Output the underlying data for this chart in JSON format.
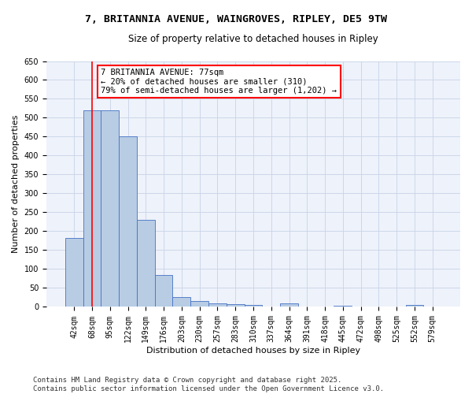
{
  "title_line1": "7, BRITANNIA AVENUE, WAINGROVES, RIPLEY, DE5 9TW",
  "title_line2": "Size of property relative to detached houses in Ripley",
  "xlabel": "Distribution of detached houses by size in Ripley",
  "ylabel": "Number of detached properties",
  "categories": [
    "42sqm",
    "68sqm",
    "95sqm",
    "122sqm",
    "149sqm",
    "176sqm",
    "203sqm",
    "230sqm",
    "257sqm",
    "283sqm",
    "310sqm",
    "337sqm",
    "364sqm",
    "391sqm",
    "418sqm",
    "445sqm",
    "472sqm",
    "498sqm",
    "525sqm",
    "552sqm",
    "579sqm"
  ],
  "values": [
    183,
    520,
    520,
    450,
    230,
    85,
    27,
    15,
    10,
    7,
    5,
    0,
    10,
    0,
    0,
    3,
    0,
    0,
    0,
    5,
    0
  ],
  "bar_color": "#b8cce4",
  "bar_edge_color": "#4472c4",
  "grid_color": "#c8d4e8",
  "bg_color": "#eef2fa",
  "vline_x_index": 1,
  "vline_color": "red",
  "annotation_text": "7 BRITANNIA AVENUE: 77sqm\n← 20% of detached houses are smaller (310)\n79% of semi-detached houses are larger (1,202) →",
  "annotation_box_color": "white",
  "annotation_box_edge_color": "red",
  "ylim": [
    0,
    650
  ],
  "yticks": [
    0,
    50,
    100,
    150,
    200,
    250,
    300,
    350,
    400,
    450,
    500,
    550,
    600,
    650
  ],
  "footer_line1": "Contains HM Land Registry data © Crown copyright and database right 2025.",
  "footer_line2": "Contains public sector information licensed under the Open Government Licence v3.0.",
  "title_fontsize": 9.5,
  "subtitle_fontsize": 8.5,
  "axis_label_fontsize": 8,
  "tick_fontsize": 7,
  "annotation_fontsize": 7.5,
  "footer_fontsize": 6.5
}
